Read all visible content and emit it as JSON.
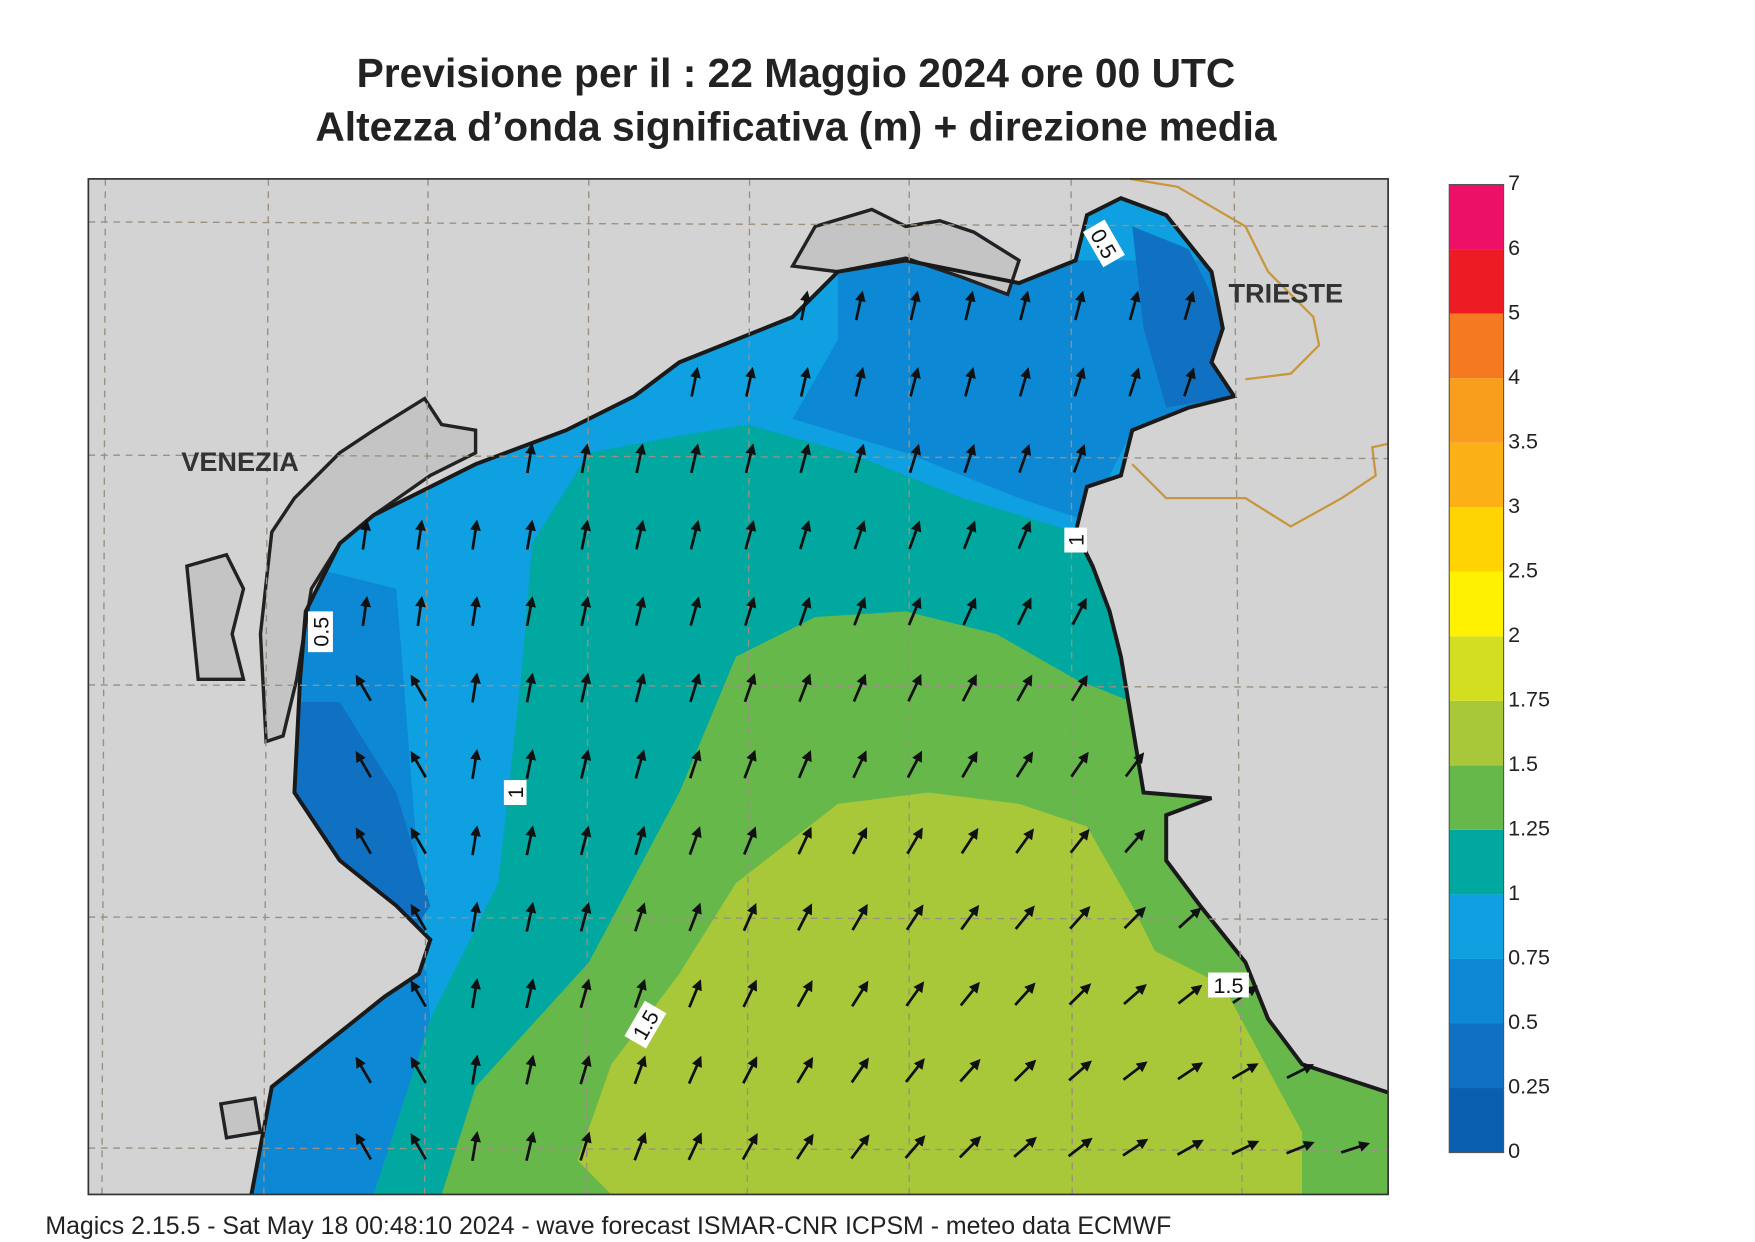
{
  "title": [
    "Previsione per il  :  22   Maggio  2024   ore 00 UTC",
    "Altezza d’onda significativa (m) + direzione media"
  ],
  "places": [
    "VENEZIA",
    "TRIESTE"
  ],
  "contour_labels": [
    "0.5",
    "0.5",
    "1",
    "1",
    "1.5",
    "1.5"
  ],
  "colorbar": {
    "levels": [
      0,
      0.25,
      0.5,
      0.75,
      1,
      1.25,
      1.5,
      1.75,
      2,
      2.5,
      3,
      3.5,
      4,
      5,
      6,
      7
    ],
    "colors": [
      "#0a5eb0",
      "#1070c2",
      "#0d88d4",
      "#0ea0e0",
      "#00a8a0",
      "#66b84a",
      "#a8c83a",
      "#d4de20",
      "#fff200",
      "#ffd400",
      "#fbb016",
      "#f99d1c",
      "#f47920",
      "#ed1c24",
      "#ec1066"
    ]
  },
  "footer": "Magics 2.15.5 - Sat May 18 00:48:10 2024 - wave forecast  ISMAR-CNR  ICPSM - meteo data    ECMWF"
}
